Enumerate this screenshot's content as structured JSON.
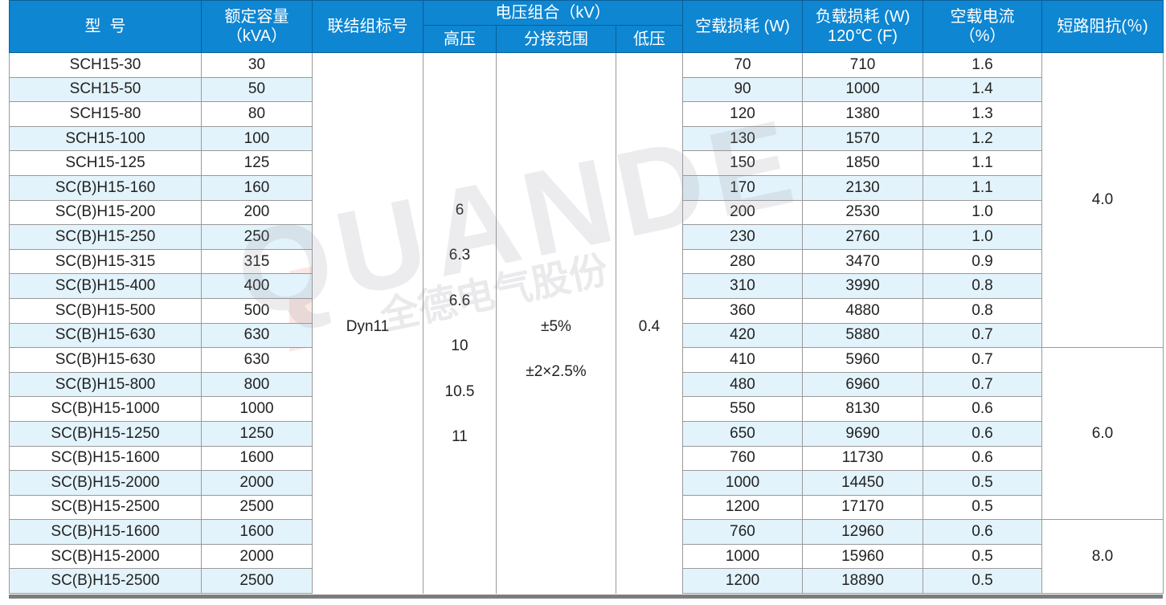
{
  "header": {
    "model": "型  号",
    "capacity": "额定容量",
    "capacity_unit": "（kVA）",
    "vector_group": "联结组标号",
    "voltage": "电压组合（kV）",
    "hv": "高压",
    "tap": "分接范围",
    "lv": "低压",
    "no_load_loss": "空载损耗 (W)",
    "load_loss": "负载损耗 (W)",
    "load_loss_temp": "120℃ (F)",
    "no_load_current": "空载电流",
    "no_load_current_unit": "（%）",
    "impedance": "短路阻抗(％)"
  },
  "merged": {
    "vector_group": "Dyn11",
    "hv_values": [
      "6",
      "6.3",
      "6.6",
      "10",
      "10.5",
      "11"
    ],
    "tap_values": [
      "±5%",
      "±2×2.5%"
    ],
    "lv": "0.4",
    "impedance": [
      "4.0",
      "6.0",
      "8.0"
    ]
  },
  "rows": [
    [
      "SCH15-30",
      "30",
      "70",
      "710",
      "1.6"
    ],
    [
      "SCH15-50",
      "50",
      "90",
      "1000",
      "1.4"
    ],
    [
      "SCH15-80",
      "80",
      "120",
      "1380",
      "1.3"
    ],
    [
      "SCH15-100",
      "100",
      "130",
      "1570",
      "1.2"
    ],
    [
      "SCH15-125",
      "125",
      "150",
      "1850",
      "1.1"
    ],
    [
      "SC(B)H15-160",
      "160",
      "170",
      "2130",
      "1.1"
    ],
    [
      "SC(B)H15-200",
      "200",
      "200",
      "2530",
      "1.0"
    ],
    [
      "SC(B)H15-250",
      "250",
      "230",
      "2760",
      "1.0"
    ],
    [
      "SC(B)H15-315",
      "315",
      "280",
      "3470",
      "0.9"
    ],
    [
      "SC(B)H15-400",
      "400",
      "310",
      "3990",
      "0.8"
    ],
    [
      "SC(B)H15-500",
      "500",
      "360",
      "4880",
      "0.8"
    ],
    [
      "SC(B)H15-630",
      "630",
      "420",
      "5880",
      "0.7"
    ],
    [
      "SC(B)H15-630",
      "630",
      "410",
      "5960",
      "0.7"
    ],
    [
      "SC(B)H15-800",
      "800",
      "480",
      "6960",
      "0.7"
    ],
    [
      "SC(B)H15-1000",
      "1000",
      "550",
      "8130",
      "0.6"
    ],
    [
      "SC(B)H15-1250",
      "1250",
      "650",
      "9690",
      "0.6"
    ],
    [
      "SC(B)H15-1600",
      "1600",
      "760",
      "11730",
      "0.6"
    ],
    [
      "SC(B)H15-2000",
      "2000",
      "1000",
      "14450",
      "0.5"
    ],
    [
      "SC(B)H15-2500",
      "2500",
      "1200",
      "17170",
      "0.5"
    ],
    [
      "SC(B)H15-1600",
      "1600",
      "760",
      "12960",
      "0.6"
    ],
    [
      "SC(B)H15-2000",
      "2000",
      "1000",
      "15960",
      "0.5"
    ],
    [
      "SC(B)H15-2500",
      "2500",
      "1200",
      "18890",
      "0.5"
    ]
  ],
  "watermark": {
    "logo": "QUANDE",
    "text": "全德电气股份"
  },
  "colors": {
    "header": "#0e86d2",
    "stripe": "#e3f3fb"
  }
}
